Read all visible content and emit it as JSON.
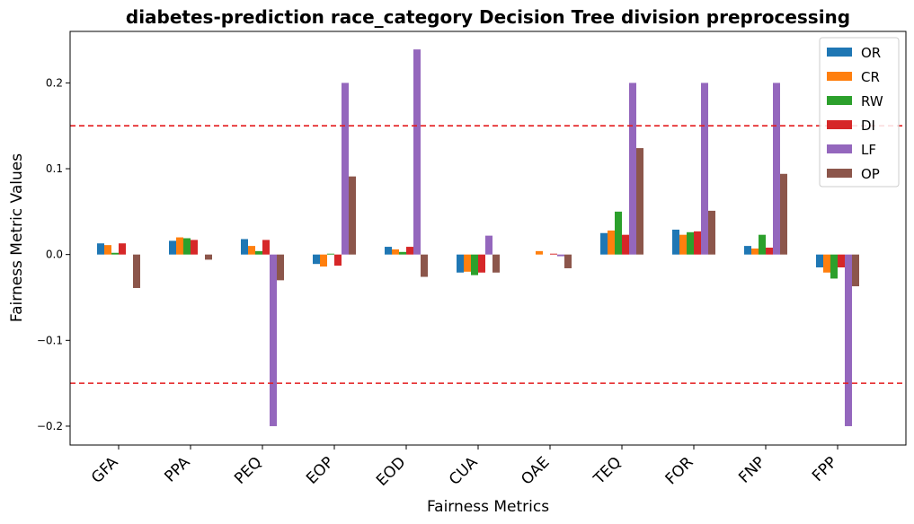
{
  "chart_data": {
    "type": "bar",
    "title": "diabetes-prediction race_category Decision Tree division preprocessing",
    "xlabel": "Fairness Metrics",
    "ylabel": "Fairness Metric Values",
    "ylim": [
      -0.222,
      0.26
    ],
    "yticks": [
      -0.2,
      -0.1,
      0.0,
      0.1,
      0.2
    ],
    "ytick_labels": [
      "−0.2",
      "−0.1",
      "0.0",
      "0.1",
      "0.2"
    ],
    "threshold_lines": [
      0.15,
      -0.15
    ],
    "threshold_color": "#e41a1c",
    "legend_position": "top-right",
    "grid": false,
    "categories": [
      "GFA",
      "PPA",
      "PEQ",
      "EOP",
      "EOD",
      "CUA",
      "OAE",
      "TEQ",
      "FOR",
      "FNP",
      "FPP"
    ],
    "series": [
      {
        "name": "OR",
        "color": "#1f77b4",
        "values": [
          0.013,
          0.016,
          0.018,
          -0.011,
          0.009,
          -0.021,
          0.0,
          0.025,
          0.029,
          0.01,
          -0.015
        ]
      },
      {
        "name": "CR",
        "color": "#ff7f0e",
        "values": [
          0.011,
          0.02,
          0.01,
          -0.014,
          0.006,
          -0.02,
          0.004,
          0.028,
          0.023,
          0.007,
          -0.021
        ]
      },
      {
        "name": "RW",
        "color": "#2ca02c",
        "values": [
          0.002,
          0.019,
          0.004,
          0.001,
          0.003,
          -0.024,
          0.0,
          0.05,
          0.026,
          0.023,
          -0.028
        ]
      },
      {
        "name": "DI",
        "color": "#d62728",
        "values": [
          0.013,
          0.017,
          0.017,
          -0.013,
          0.009,
          -0.021,
          0.001,
          0.023,
          0.027,
          0.008,
          -0.015
        ]
      },
      {
        "name": "LF",
        "color": "#9467bd",
        "values": [
          0.0,
          0.0,
          -0.2,
          0.2,
          0.239,
          0.022,
          -0.002,
          0.2,
          0.2,
          0.2,
          -0.2
        ]
      },
      {
        "name": "OP",
        "color": "#8c564b",
        "values": [
          -0.039,
          -0.006,
          -0.03,
          0.091,
          -0.026,
          -0.021,
          -0.016,
          0.124,
          0.051,
          0.094,
          -0.037
        ]
      }
    ]
  }
}
